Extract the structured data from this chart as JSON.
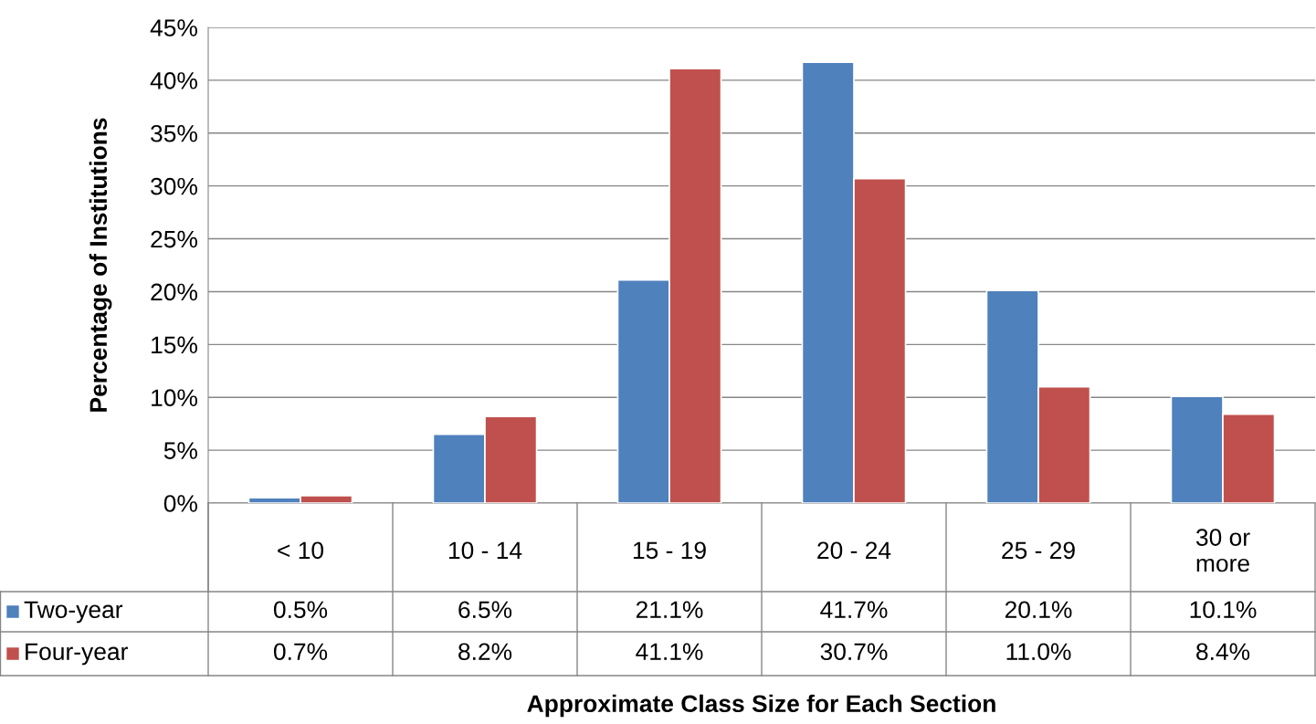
{
  "chart_data": {
    "type": "bar",
    "annotations": [
      "Approximate Class Size for Each Section"
    ],
    "ylabel": "Percentage of Institutions",
    "categories": [
      "< 10",
      "10 - 14",
      "15 - 19",
      "20 - 24",
      "25 - 29",
      "30 or\nmore"
    ],
    "series": [
      {
        "name": "Two-year",
        "color": "#4f81bd",
        "values": [
          0.5,
          6.5,
          21.1,
          41.7,
          20.1,
          10.1
        ],
        "value_labels": [
          "0.5%",
          "6.5%",
          "21.1%",
          "41.7%",
          "20.1%",
          "10.1%"
        ]
      },
      {
        "name": "Four-year",
        "color": "#c0504d",
        "values": [
          0.7,
          8.2,
          41.1,
          30.7,
          11.0,
          8.4
        ],
        "value_labels": [
          "0.7%",
          "8.2%",
          "41.1%",
          "30.7%",
          "11.0%",
          "8.4%"
        ]
      }
    ],
    "ylim": [
      0,
      45
    ],
    "yticks": [
      {
        "value": 0,
        "label": "0%"
      },
      {
        "value": 5,
        "label": "5%"
      },
      {
        "value": 10,
        "label": "10%"
      },
      {
        "value": 15,
        "label": "15%"
      },
      {
        "value": 20,
        "label": "20%"
      },
      {
        "value": 25,
        "label": "25%"
      },
      {
        "value": 30,
        "label": "30%"
      },
      {
        "value": 35,
        "label": "35%"
      },
      {
        "value": 40,
        "label": "40%"
      },
      {
        "value": 45,
        "label": "45%"
      }
    ],
    "grid": "y",
    "legend": "bottom"
  }
}
